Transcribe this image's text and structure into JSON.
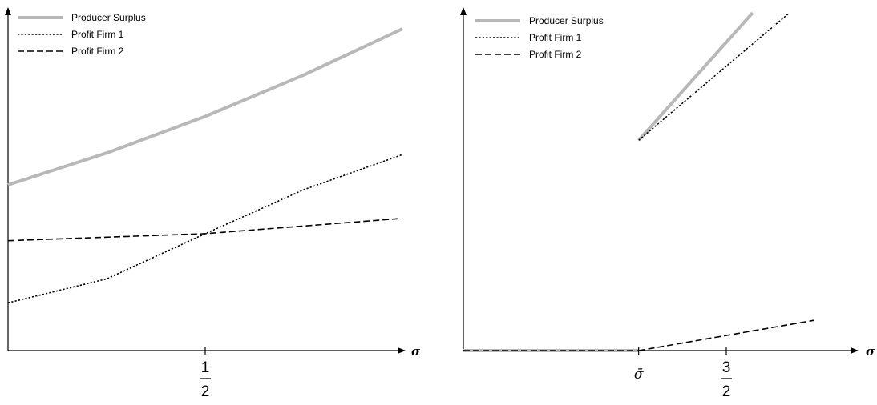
{
  "chart_data": [
    {
      "type": "line",
      "xlabel": "σ",
      "xticks": [
        {
          "x": 0.5,
          "numerator": "1",
          "denominator": "2"
        }
      ],
      "xlim": [
        0,
        1
      ],
      "ylim": [
        0,
        1
      ],
      "legend": "top-left",
      "series": [
        {
          "name": "Producer Surplus",
          "style": "solid",
          "color": "#b8b8b8",
          "x": [
            0,
            0.25,
            0.5,
            0.75,
            1.0
          ],
          "y": [
            0.52,
            0.62,
            0.735,
            0.865,
            1.01
          ]
        },
        {
          "name": "Profit Firm 1",
          "style": "dotted",
          "color": "#000000",
          "x": [
            0,
            0.25,
            0.5,
            0.75,
            1.0
          ],
          "y": [
            0.15,
            0.225,
            0.367,
            0.505,
            0.615
          ]
        },
        {
          "name": "Profit Firm 2",
          "style": "dashed",
          "color": "#000000",
          "x": [
            0,
            0.5,
            1.0
          ],
          "y": [
            0.345,
            0.367,
            0.415
          ]
        }
      ]
    },
    {
      "type": "line",
      "xlabel": "σ",
      "xticks": [
        {
          "x": 1.0,
          "label": "σ̄"
        },
        {
          "x": 1.5,
          "numerator": "3",
          "denominator": "2"
        }
      ],
      "xlim": [
        0,
        2.25
      ],
      "ylim": [
        0,
        1
      ],
      "legend": "top-left",
      "series": [
        {
          "name": "Producer Surplus",
          "style": "solid",
          "color": "#b8b8b8",
          "segments": [
            {
              "x": [
                0,
                1.0
              ],
              "y": [
                0.0,
                0.0
              ]
            },
            {
              "x": [
                1.0,
                1.65
              ],
              "y": [
                0.66,
                1.06
              ]
            }
          ]
        },
        {
          "name": "Profit Firm 1",
          "style": "dotted",
          "color": "#000000",
          "segments": [
            {
              "x": [
                1.0,
                1.86
              ],
              "y": [
                0.66,
                1.06
              ]
            }
          ]
        },
        {
          "name": "Profit Firm 2",
          "style": "dashed",
          "color": "#000000",
          "segments": [
            {
              "x": [
                0,
                1.0
              ],
              "y": [
                0.0,
                0.0
              ]
            },
            {
              "x": [
                1.0,
                2.0
              ],
              "y": [
                0.0,
                0.095
              ]
            }
          ]
        }
      ]
    }
  ]
}
